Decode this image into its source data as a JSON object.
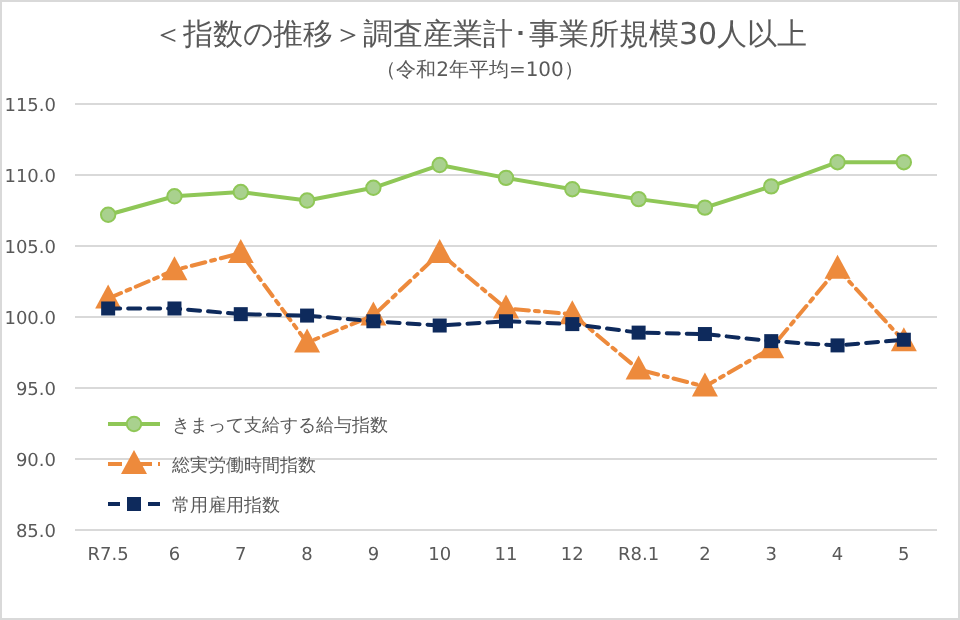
{
  "chart_data": {
    "type": "line",
    "title": "＜指数の推移＞調査産業計･事業所規模30人以上",
    "subtitle": "（令和2年平均=100）",
    "categories": [
      "R7.5",
      "6",
      "7",
      "8",
      "9",
      "10",
      "11",
      "12",
      "R8.1",
      "2",
      "3",
      "4",
      "5"
    ],
    "series": [
      {
        "name": "きまって支給する給与指数",
        "color": "#8fc757",
        "marker": "circle",
        "line_style": "solid",
        "values": [
          107.2,
          108.5,
          108.8,
          108.2,
          109.1,
          110.7,
          109.8,
          109.0,
          108.3,
          107.7,
          109.2,
          110.9,
          110.9
        ]
      },
      {
        "name": "総実労働時間指数",
        "color": "#ed8a3c",
        "marker": "triangle",
        "line_style": "dashdot",
        "values": [
          101.3,
          103.3,
          104.5,
          98.2,
          100.1,
          104.5,
          100.6,
          100.2,
          96.3,
          95.1,
          97.8,
          103.4,
          98.3
        ]
      },
      {
        "name": "常用雇用指数",
        "color": "#0e2a5c",
        "marker": "square",
        "line_style": "dashed",
        "values": [
          100.6,
          100.6,
          100.2,
          100.1,
          99.7,
          99.4,
          99.7,
          99.5,
          98.9,
          98.8,
          98.3,
          98.0,
          98.4
        ]
      }
    ],
    "ylim": [
      85,
      115
    ],
    "yticks": [
      {
        "value": 85,
        "label": "85.0"
      },
      {
        "value": 90,
        "label": "90.0"
      },
      {
        "value": 95,
        "label": "95.0"
      },
      {
        "value": 100,
        "label": "100.0"
      },
      {
        "value": 105,
        "label": "105.0"
      },
      {
        "value": 110,
        "label": "110.0"
      },
      {
        "value": 115,
        "label": "115.0"
      }
    ],
    "grid": "y",
    "legend": "left"
  }
}
